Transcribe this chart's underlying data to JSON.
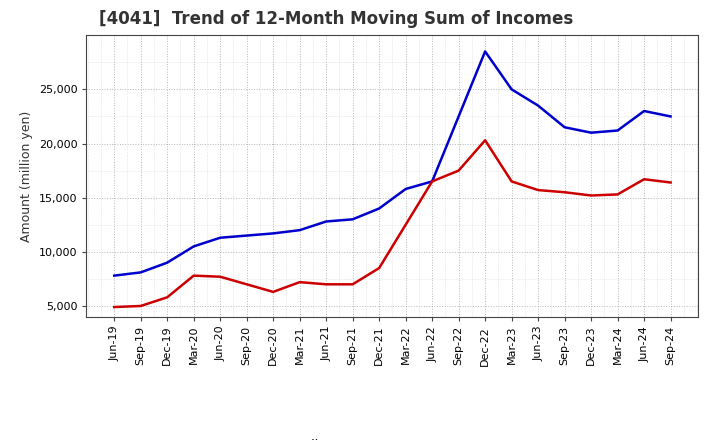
{
  "title": "[4041]  Trend of 12-Month Moving Sum of Incomes",
  "ylabel": "Amount (million yen)",
  "background_color": "#ffffff",
  "plot_bg_color": "#ffffff",
  "grid_color": "#999999",
  "labels": [
    "Jun-19",
    "Sep-19",
    "Dec-19",
    "Mar-20",
    "Jun-20",
    "Sep-20",
    "Dec-20",
    "Mar-21",
    "Jun-21",
    "Sep-21",
    "Dec-21",
    "Mar-22",
    "Jun-22",
    "Sep-22",
    "Dec-22",
    "Mar-23",
    "Jun-23",
    "Sep-23",
    "Dec-23",
    "Mar-24",
    "Jun-24",
    "Sep-24"
  ],
  "ordinary_income": [
    7800,
    8100,
    9000,
    10500,
    11300,
    11500,
    11700,
    12000,
    12800,
    13000,
    14000,
    15800,
    16500,
    22500,
    28500,
    25000,
    23500,
    21500,
    21000,
    21200,
    23000,
    22500
  ],
  "net_income": [
    4900,
    5000,
    5800,
    7800,
    7700,
    7000,
    6300,
    7200,
    7000,
    7000,
    8500,
    12500,
    16500,
    17500,
    20300,
    16500,
    15700,
    15500,
    15200,
    15300,
    16700,
    16400
  ],
  "ordinary_color": "#0000cc",
  "net_color": "#cc0000",
  "ylim_min": 4000,
  "ylim_max": 30000,
  "yticks": [
    5000,
    10000,
    15000,
    20000,
    25000
  ],
  "line_width": 1.8,
  "title_fontsize": 12,
  "title_color": "#333333",
  "tick_fontsize": 8,
  "ylabel_fontsize": 9,
  "legend_fontsize": 9
}
